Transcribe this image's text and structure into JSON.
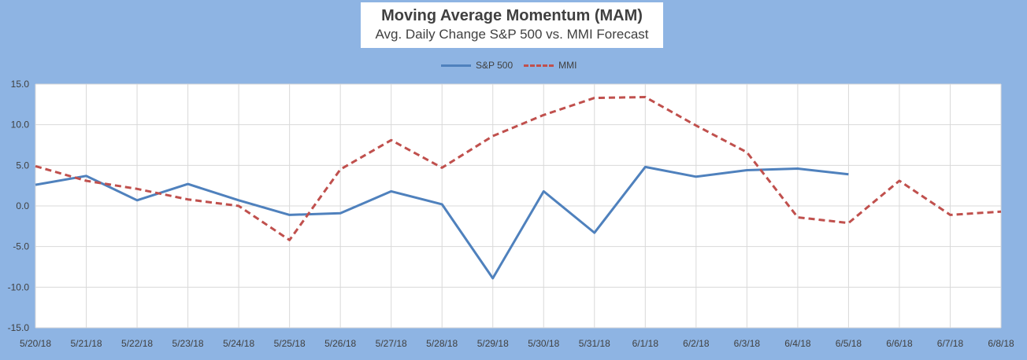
{
  "title": "Moving Average Momentum (MAM)",
  "subtitle": "Avg. Daily Change S&P 500 vs. MMI Forecast",
  "colors": {
    "background": "#8EB4E3",
    "plot_area": "#FFFFFF",
    "gridline": "#D9D9D9",
    "sp500": "#4F81BD",
    "mmi": "#C0504D"
  },
  "chart_data": {
    "type": "line",
    "title": "Moving Average Momentum (MAM)",
    "subtitle": "Avg. Daily Change S&P 500 vs. MMI Forecast",
    "categories": [
      "5/20/18",
      "5/21/18",
      "5/22/18",
      "5/23/18",
      "5/24/18",
      "5/25/18",
      "5/26/18",
      "5/27/18",
      "5/28/18",
      "5/29/18",
      "5/30/18",
      "5/31/18",
      "6/1/18",
      "6/2/18",
      "6/3/18",
      "6/4/18",
      "6/5/18",
      "6/6/18",
      "6/7/18",
      "6/8/18"
    ],
    "series": [
      {
        "name": "S&P 500",
        "style": "solid",
        "values": [
          2.6,
          3.7,
          0.7,
          2.7,
          0.7,
          -1.1,
          -0.9,
          1.8,
          0.2,
          -8.9,
          1.8,
          -3.3,
          4.8,
          3.6,
          4.4,
          4.6,
          3.9,
          null,
          null,
          null
        ]
      },
      {
        "name": "MMI",
        "style": "dashed",
        "values": [
          4.9,
          3.1,
          2.1,
          0.8,
          0.0,
          -4.2,
          4.5,
          8.1,
          4.7,
          8.6,
          11.2,
          13.3,
          13.4,
          9.9,
          6.6,
          -1.4,
          -2.1,
          3.1,
          -1.1,
          -0.7
        ]
      }
    ],
    "yticks": [
      "15.0",
      "10.0",
      "5.0",
      "0.0",
      "-5.0",
      "-10.0",
      "-15.0"
    ],
    "ylim": [
      -15,
      15
    ],
    "legend_position": "top",
    "grid": true
  }
}
